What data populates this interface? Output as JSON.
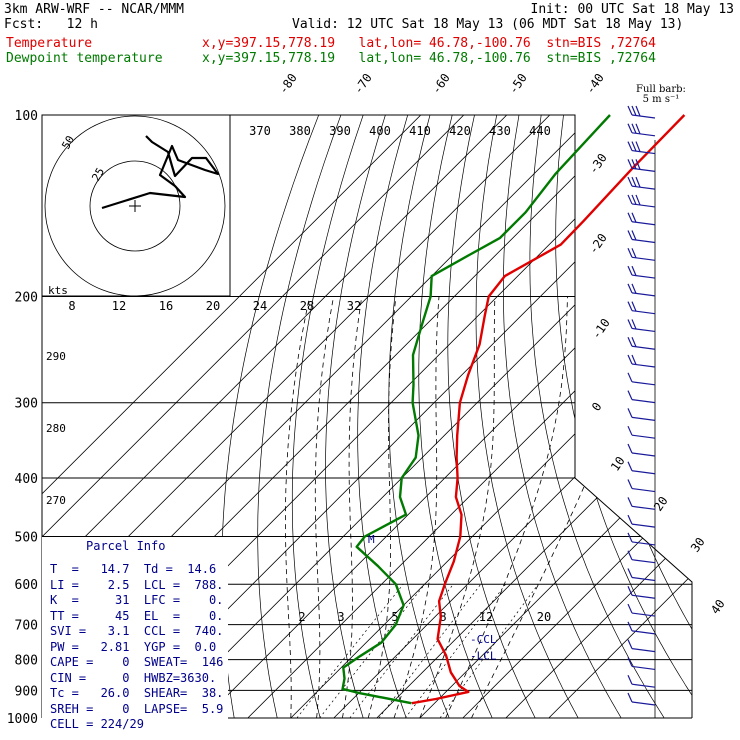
{
  "header": {
    "title": "3km ARW-WRF -- NCAR/MMM",
    "init": "Init: 00 UTC Sat 18 May 13",
    "fcst": "Fcst:   12 h",
    "valid": "Valid: 12 UTC Sat 18 May 13 (06 MDT Sat 18 May 13)"
  },
  "legend": {
    "temperature_label": "Temperature",
    "temperature_info": "x,y=397.15,778.19   lat,lon= 46.78,-100.76  stn=BIS ,72764",
    "dewpoint_label": "Dewpoint temperature",
    "dewpoint_info": "x,y=397.15,778.19   lat,lon= 46.78,-100.76  stn=BIS ,72764"
  },
  "barb_note": {
    "line1": "Full barb:",
    "line2": "5 m s⁻¹"
  },
  "parcel_info": {
    "title": "Parcel Info",
    "rows": [
      "T  =   14.7  Td =  14.6",
      "LI =    2.5  LCL =  788.",
      "K  =     31  LFC =    0.",
      "TT =     45  EL  =    0.",
      "SVI =   3.1  CCL =  740.",
      "PW =   2.81  YGP =  0.0",
      "CAPE =    0  SWEAT=  146",
      "CIN =     0  HWBZ=3630.",
      "Tc =   26.0  SHEAR=  38.",
      "SREH =    0  LAPSE=  5.9",
      "CELL = 224/29"
    ]
  },
  "chart_data": {
    "type": "line",
    "title": "",
    "y_axis": {
      "scale": "log-pressure",
      "unit": "hPa",
      "range": [
        1000,
        100
      ],
      "ticks": [
        100,
        200,
        300,
        400,
        500,
        600,
        700,
        800,
        900,
        1000
      ]
    },
    "isotherm_labels": [
      -80,
      -70,
      -60,
      -50,
      -40,
      -30,
      -20,
      -10,
      0,
      10,
      20,
      30,
      40
    ],
    "theta_labels_top": [
      370,
      380,
      390,
      400,
      410,
      420,
      430,
      440
    ],
    "theta_labels_left": [
      290,
      280,
      270
    ],
    "mixing_ratio_labels_upper": [
      8,
      12,
      16,
      20,
      24,
      28,
      32
    ],
    "mixing_ratio_labels_lower": [
      2,
      3,
      5,
      8,
      12,
      20
    ],
    "level_markers": [
      {
        "label": "M",
        "p": 505
      },
      {
        "label": "CCL",
        "p": 740
      },
      {
        "label": "LCL",
        "p": 788
      }
    ],
    "hodograph": {
      "unit_label": "kts",
      "ring_labels": [
        "25",
        "50"
      ]
    },
    "series": [
      {
        "name": "Temperature",
        "color": "#e00000",
        "points": [
          [
            100,
            -58.7
          ],
          [
            122,
            -58.4
          ],
          [
            150,
            -57.5
          ],
          [
            164,
            -57.3
          ],
          [
            185,
            -63
          ],
          [
            200,
            -62
          ],
          [
            215,
            -58.5
          ],
          [
            240,
            -53
          ],
          [
            270,
            -48.5
          ],
          [
            300,
            -44
          ],
          [
            340,
            -37
          ],
          [
            370,
            -32
          ],
          [
            400,
            -27
          ],
          [
            430,
            -23
          ],
          [
            460,
            -17.6
          ],
          [
            500,
            -12.8
          ],
          [
            550,
            -8.5
          ],
          [
            600,
            -5.3
          ],
          [
            640,
            -2.7
          ],
          [
            680,
            1.4
          ],
          [
            740,
            5.8
          ],
          [
            788,
            11.6
          ],
          [
            840,
            16.6
          ],
          [
            885,
            21.8
          ],
          [
            905,
            25.2
          ],
          [
            930,
            19.3
          ],
          [
            945,
            14.7
          ]
        ]
      },
      {
        "name": "Dewpoint temperature",
        "color": "#007a00",
        "points": [
          [
            100,
            -76
          ],
          [
            125,
            -75
          ],
          [
            145,
            -73
          ],
          [
            160,
            -73
          ],
          [
            170,
            -76
          ],
          [
            185,
            -80
          ],
          [
            200,
            -75.5
          ],
          [
            220,
            -71.5
          ],
          [
            250,
            -66
          ],
          [
            280,
            -59
          ],
          [
            300,
            -55
          ],
          [
            340,
            -46
          ],
          [
            370,
            -41.5
          ],
          [
            400,
            -40
          ],
          [
            430,
            -36
          ],
          [
            460,
            -30.5
          ],
          [
            500,
            -35
          ],
          [
            520,
            -34.5
          ],
          [
            560,
            -25
          ],
          [
            600,
            -16.7
          ],
          [
            650,
            -10
          ],
          [
            700,
            -7.3
          ],
          [
            750,
            -6.5
          ],
          [
            790,
            -8.3
          ],
          [
            825,
            -9.5
          ],
          [
            860,
            -6.7
          ],
          [
            895,
            -4.7
          ],
          [
            910,
            0.5
          ],
          [
            945,
            14.6
          ]
        ]
      }
    ],
    "wind_barb_levels": 34
  }
}
